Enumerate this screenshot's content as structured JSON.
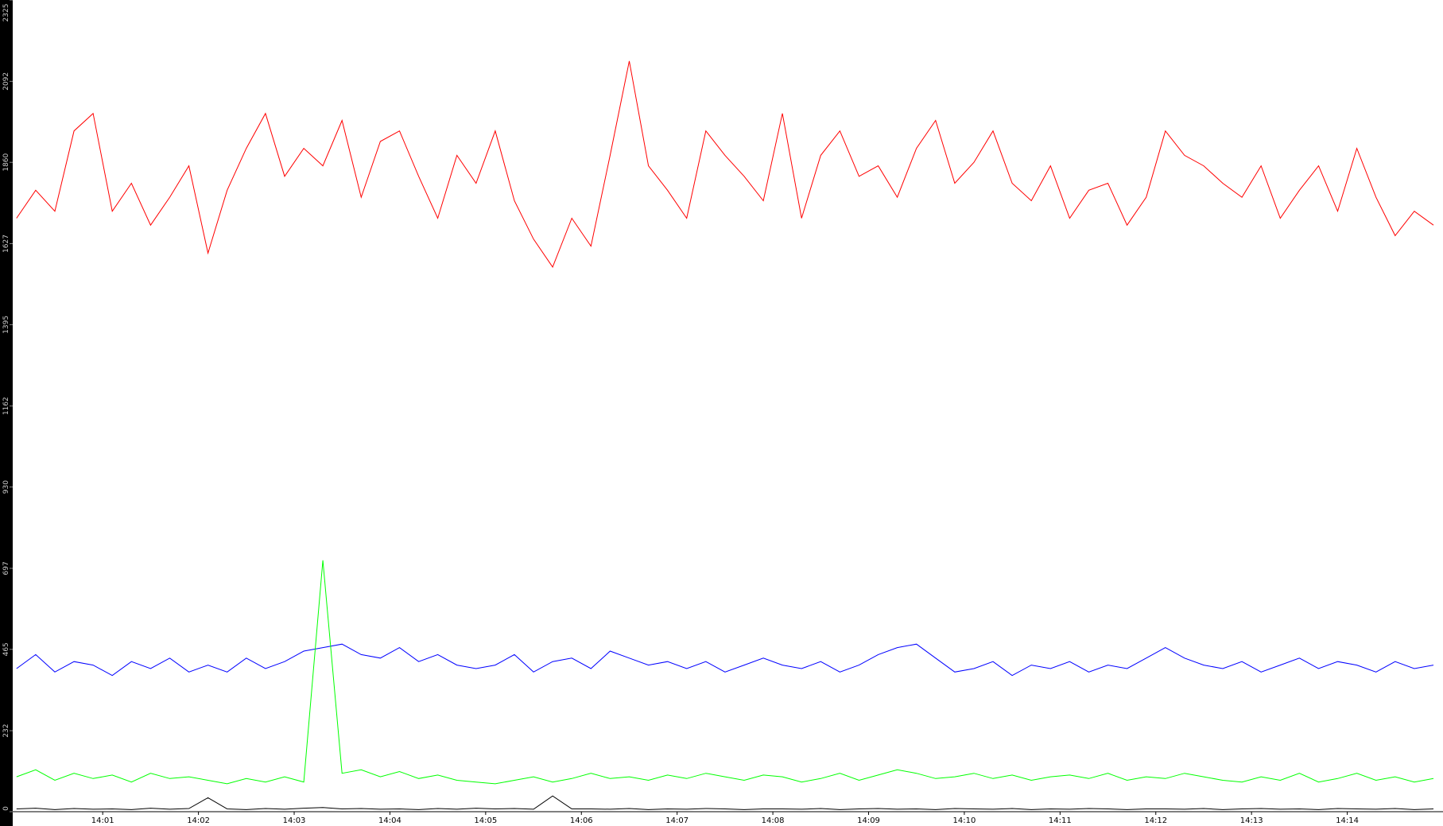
{
  "chart_data": {
    "type": "line",
    "x": [
      0.1,
      0.3,
      0.5,
      0.7,
      0.9,
      1.1,
      1.3,
      1.5,
      1.7,
      1.9,
      2.1,
      2.3,
      2.5,
      2.7,
      2.9,
      3.1,
      3.3,
      3.5,
      3.7,
      3.9,
      4.1,
      4.3,
      4.5,
      4.7,
      4.9,
      5.1,
      5.3,
      5.5,
      5.7,
      5.9,
      6.1,
      6.3,
      6.5,
      6.7,
      6.9,
      7.1,
      7.3,
      7.5,
      7.7,
      7.9,
      8.1,
      8.3,
      8.5,
      8.7,
      8.9,
      9.1,
      9.3,
      9.5,
      9.7,
      9.9,
      10.1,
      10.3,
      10.5,
      10.7,
      10.9,
      11.1,
      11.3,
      11.5,
      11.7,
      11.9,
      12.1,
      12.3,
      12.5,
      12.7,
      12.9,
      13.1,
      13.3,
      13.5,
      13.7,
      13.9,
      14.1,
      14.3,
      14.5,
      14.7,
      14.9
    ],
    "series": [
      {
        "color": "#ff0000",
        "values": [
          1700,
          1780,
          1720,
          1950,
          2000,
          1720,
          1800,
          1680,
          1760,
          1850,
          1600,
          1780,
          1900,
          2000,
          1820,
          1900,
          1850,
          1980,
          1760,
          1920,
          1950,
          1820,
          1700,
          1880,
          1800,
          1950,
          1750,
          1640,
          1560,
          1700,
          1620,
          1880,
          2150,
          1850,
          1780,
          1700,
          1950,
          1880,
          1820,
          1750,
          2000,
          1700,
          1880,
          1950,
          1820,
          1850,
          1760,
          1900,
          1980,
          1800,
          1860,
          1950,
          1800,
          1750,
          1850,
          1700,
          1780,
          1800,
          1680,
          1760,
          1950,
          1880,
          1850,
          1800,
          1760,
          1850,
          1700,
          1780,
          1850,
          1720,
          1900,
          1760,
          1650,
          1720,
          1680
        ]
      },
      {
        "color": "#0000ff",
        "values": [
          410,
          450,
          400,
          430,
          420,
          390,
          430,
          410,
          440,
          400,
          420,
          400,
          440,
          410,
          430,
          460,
          470,
          480,
          450,
          440,
          470,
          430,
          450,
          420,
          410,
          420,
          450,
          400,
          430,
          440,
          410,
          460,
          440,
          420,
          430,
          410,
          430,
          400,
          420,
          440,
          420,
          410,
          430,
          400,
          420,
          450,
          470,
          480,
          440,
          400,
          410,
          430,
          390,
          420,
          410,
          430,
          400,
          420,
          410,
          440,
          470,
          440,
          420,
          410,
          430,
          400,
          420,
          440,
          410,
          430,
          420,
          400,
          430,
          410,
          420
        ]
      },
      {
        "color": "#00ff00",
        "values": [
          100,
          120,
          90,
          110,
          95,
          105,
          85,
          110,
          95,
          100,
          90,
          80,
          95,
          85,
          100,
          85,
          720,
          110,
          120,
          100,
          115,
          95,
          105,
          90,
          85,
          80,
          90,
          100,
          85,
          95,
          110,
          95,
          100,
          90,
          105,
          95,
          110,
          100,
          90,
          105,
          100,
          85,
          95,
          110,
          90,
          105,
          120,
          110,
          95,
          100,
          110,
          95,
          105,
          90,
          100,
          105,
          95,
          110,
          90,
          100,
          95,
          110,
          100,
          90,
          85,
          100,
          90,
          110,
          85,
          95,
          110,
          90,
          100,
          85,
          95
        ]
      },
      {
        "color": "#000000",
        "values": [
          8,
          10,
          6,
          9,
          7,
          8,
          6,
          10,
          7,
          9,
          40,
          8,
          6,
          9,
          7,
          10,
          12,
          8,
          9,
          7,
          8,
          6,
          9,
          7,
          10,
          8,
          9,
          7,
          45,
          8,
          8,
          7,
          9,
          6,
          8,
          7,
          9,
          8,
          6,
          8,
          8,
          7,
          9,
          6,
          8,
          9,
          7,
          8,
          6,
          9,
          8,
          7,
          9,
          6,
          8,
          7,
          9,
          8,
          6,
          8,
          8,
          7,
          9,
          6,
          8,
          9,
          7,
          8,
          6,
          9,
          8,
          7,
          9,
          6,
          8
        ]
      }
    ],
    "xlim": [
      0.06,
      15.0
    ],
    "xticks": [
      {
        "value": 1,
        "label": "14:01"
      },
      {
        "value": 2,
        "label": "14:02"
      },
      {
        "value": 3,
        "label": "14:03"
      },
      {
        "value": 4,
        "label": "14:04"
      },
      {
        "value": 5,
        "label": "14:05"
      },
      {
        "value": 6,
        "label": "14:06"
      },
      {
        "value": 7,
        "label": "14:07"
      },
      {
        "value": 8,
        "label": "14:08"
      },
      {
        "value": 9,
        "label": "14:09"
      },
      {
        "value": 10,
        "label": "14:10"
      },
      {
        "value": 11,
        "label": "14:11"
      },
      {
        "value": 12,
        "label": "14:12"
      },
      {
        "value": 13,
        "label": "14:13"
      },
      {
        "value": 14,
        "label": "14:14"
      }
    ],
    "ylim": [
      0,
      2325
    ],
    "yticks": [
      0,
      232,
      465,
      697,
      930,
      1162,
      1395,
      1627,
      1860,
      2092,
      2325
    ]
  }
}
